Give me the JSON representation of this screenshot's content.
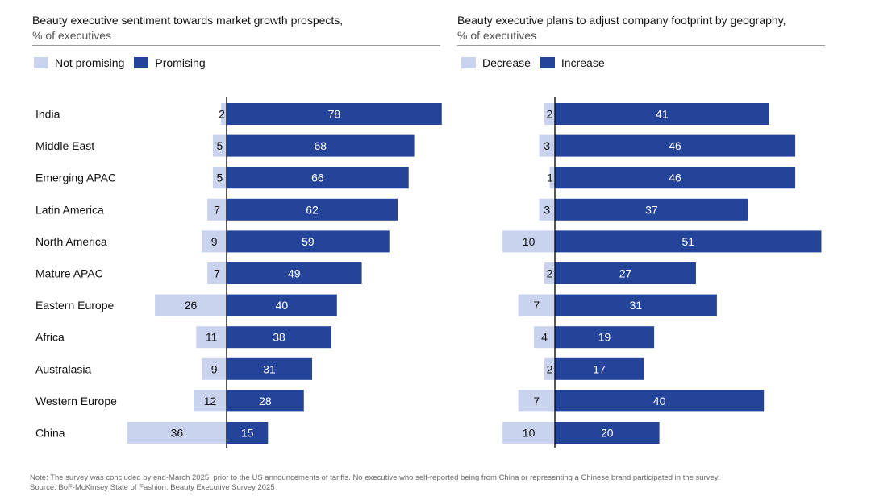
{
  "colors": {
    "not_promising": "#c9d3ee",
    "promising": "#24449a",
    "axis": "#111111"
  },
  "left_legend": {
    "neg_label": "Not promising",
    "pos_label": "Promising"
  },
  "right_legend": {
    "neg_label": "Decrease",
    "pos_label": "Increase"
  },
  "chart_data": [
    {
      "type": "bar",
      "orientation": "horizontal-diverging",
      "title": "Beauty executive sentiment towards market growth prospects,",
      "subtitle": "% of executives",
      "categories": [
        "India",
        "Middle East",
        "Emerging APAC",
        "Latin America",
        "North America",
        "Mature APAC",
        "Eastern Europe",
        "Africa",
        "Australasia",
        "Western Europe",
        "China"
      ],
      "series": [
        {
          "name": "Not promising",
          "values": [
            2,
            5,
            5,
            7,
            9,
            7,
            26,
            11,
            9,
            12,
            36
          ]
        },
        {
          "name": "Promising",
          "values": [
            78,
            68,
            66,
            62,
            59,
            49,
            40,
            38,
            31,
            28,
            15
          ]
        }
      ],
      "legend": "top-left",
      "grid": false
    },
    {
      "type": "bar",
      "orientation": "horizontal-diverging",
      "title": "Beauty executive plans to adjust company footprint by geography,",
      "subtitle": "% of executives",
      "categories": [
        "India",
        "Middle East",
        "Emerging APAC",
        "Latin America",
        "North America",
        "Mature APAC",
        "Eastern Europe",
        "Africa",
        "Australasia",
        "Western Europe",
        "China"
      ],
      "series": [
        {
          "name": "Decrease",
          "values": [
            2,
            3,
            1,
            3,
            10,
            2,
            7,
            4,
            2,
            7,
            10
          ]
        },
        {
          "name": "Increase",
          "values": [
            41,
            46,
            46,
            37,
            51,
            27,
            31,
            19,
            17,
            40,
            20
          ]
        }
      ],
      "legend": "top-left",
      "grid": false
    }
  ],
  "footer": {
    "note": "Note: The survey was concluded by end-March 2025, prior to the US announcements of tariffs. No executive who self-reported being from China or representing a Chinese brand participated in the survey.",
    "source": "Source: BoF-McKinsey State of Fashion: Beauty Executive Survey 2025"
  }
}
